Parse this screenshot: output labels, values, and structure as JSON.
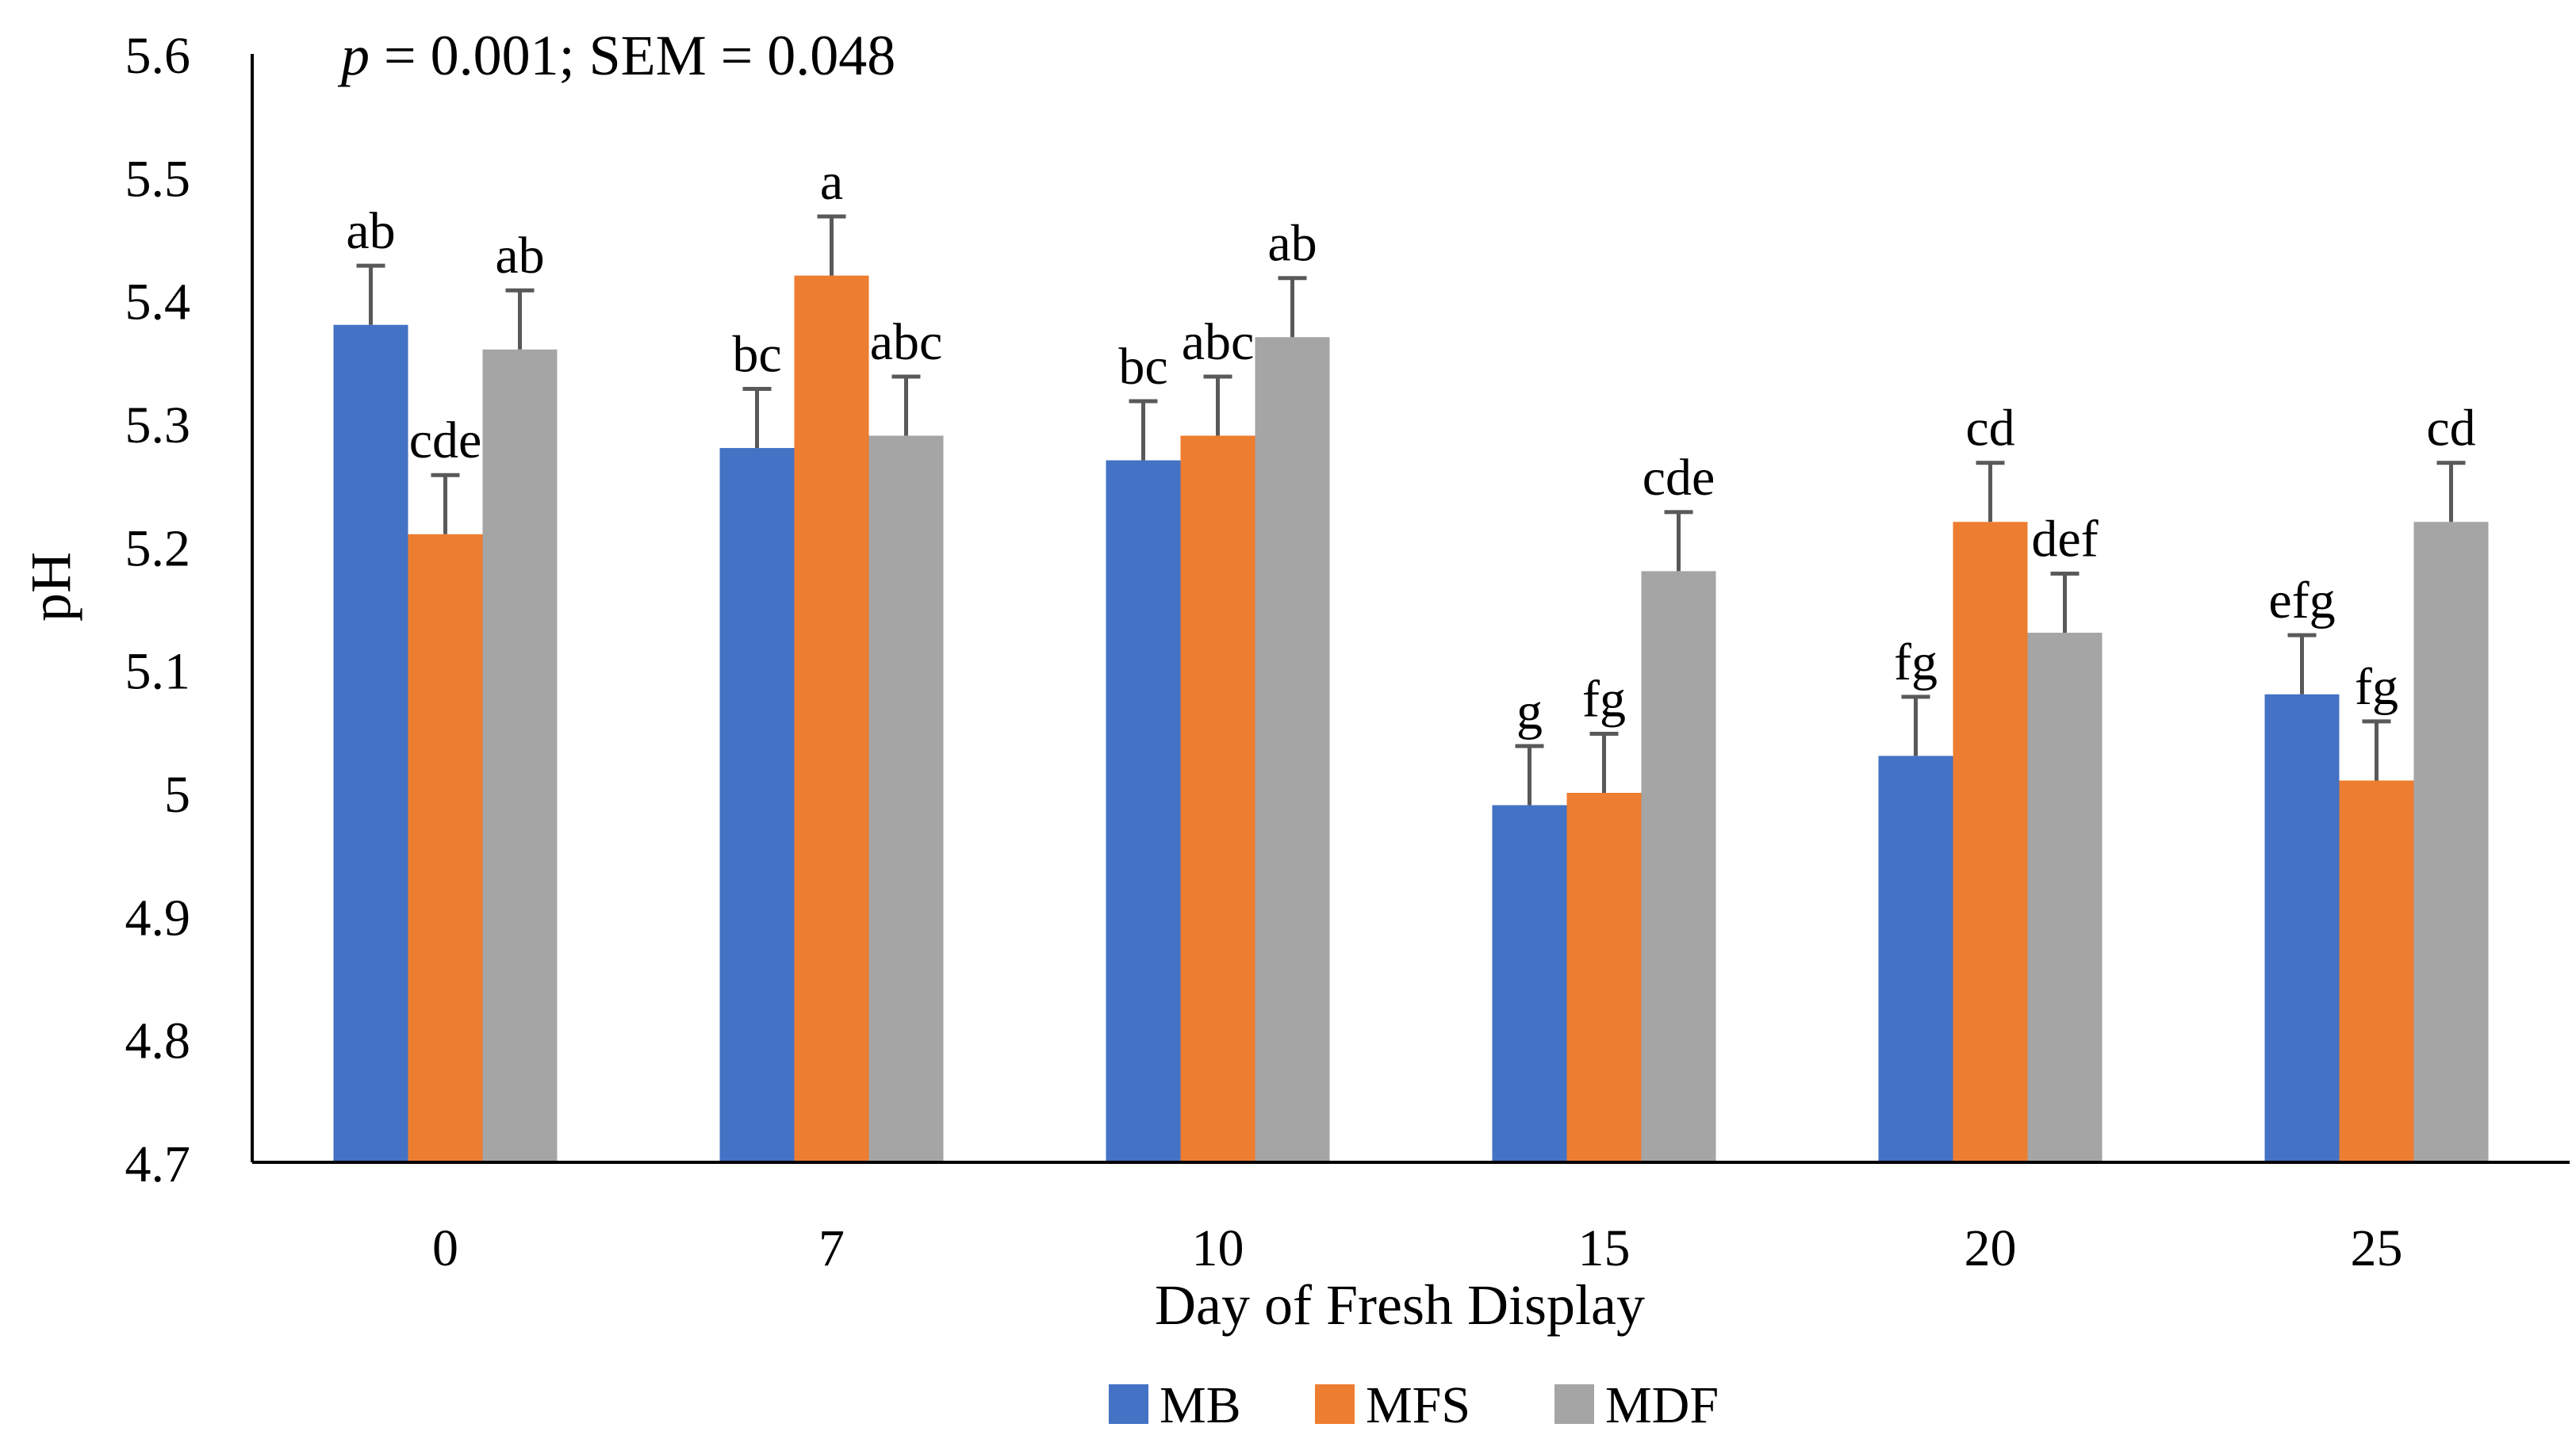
{
  "chart_data": {
    "type": "bar",
    "annotation_prefix": "p",
    "annotation": " = 0.001; SEM = 0.048",
    "xlabel": "Day of Fresh Display",
    "ylabel": "pH",
    "ylim": [
      4.7,
      5.6
    ],
    "yticks": [
      "4.7",
      "4.8",
      "4.9",
      "5",
      "5.1",
      "5.2",
      "5.3",
      "5.4",
      "5.5",
      "5.6"
    ],
    "categories": [
      "0",
      "7",
      "10",
      "15",
      "20",
      "25"
    ],
    "error": 0.048,
    "legend_position": "bottom",
    "series": [
      {
        "name": "MB",
        "color": "#4472C4",
        "values": [
          5.38,
          5.28,
          5.27,
          4.99,
          5.03,
          5.08
        ],
        "letters": [
          "ab",
          "bc",
          "bc",
          "g",
          "fg",
          "efg"
        ]
      },
      {
        "name": "MFS",
        "color": "#ED7D31",
        "values": [
          5.21,
          5.42,
          5.29,
          5.0,
          5.22,
          5.01
        ],
        "letters": [
          "cde",
          "a",
          "abc",
          "fg",
          "cd",
          "fg"
        ]
      },
      {
        "name": "MDF",
        "color": "#A5A5A5",
        "values": [
          5.36,
          5.29,
          5.37,
          5.18,
          5.13,
          5.22
        ],
        "letters": [
          "ab",
          "abc",
          "ab",
          "cde",
          "def",
          "cd"
        ]
      }
    ]
  }
}
